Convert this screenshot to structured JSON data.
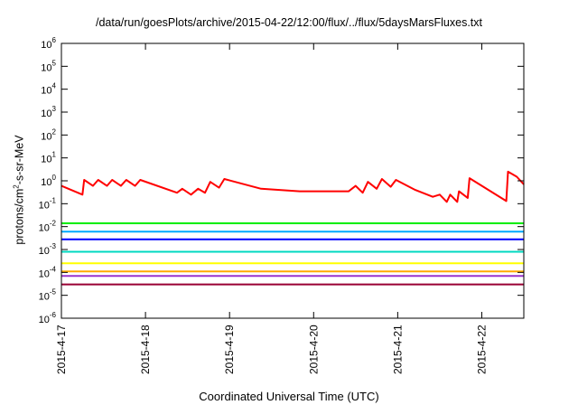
{
  "chart_data": {
    "type": "line",
    "title": "/data/run/goesPlots/archive/2015-04-22/12:00/flux/../flux/5daysMarsFluxes.txt",
    "xlabel": "Coordinated Universal Time (UTC)",
    "ylabel": {
      "base": "protons/cm",
      "exponent": "2",
      "suffix": "-s-sr-MeV"
    },
    "y_scale": "log",
    "ylim": [
      1e-06,
      1000000.0
    ],
    "y_ticks": [
      {
        "value": 1e-06,
        "base": "10",
        "exp": "-6"
      },
      {
        "value": 1e-05,
        "base": "10",
        "exp": "-5"
      },
      {
        "value": 0.0001,
        "base": "10",
        "exp": "-4"
      },
      {
        "value": 0.001,
        "base": "10",
        "exp": "-3"
      },
      {
        "value": 0.01,
        "base": "10",
        "exp": "-2"
      },
      {
        "value": 0.1,
        "base": "10",
        "exp": "-1"
      },
      {
        "value": 1,
        "base": "10",
        "exp": "0"
      },
      {
        "value": 10,
        "base": "10",
        "exp": "1"
      },
      {
        "value": 100,
        "base": "10",
        "exp": "2"
      },
      {
        "value": 1000,
        "base": "10",
        "exp": "3"
      },
      {
        "value": 10000,
        "base": "10",
        "exp": "4"
      },
      {
        "value": 100000,
        "base": "10",
        "exp": "5"
      },
      {
        "value": 1000000,
        "base": "10",
        "exp": "6"
      }
    ],
    "xlim": [
      "2015-04-17 00:00",
      "2015-04-22 12:00"
    ],
    "x_ticks": [
      "2015-4-17",
      "2015-4-18",
      "2015-4-19",
      "2015-4-20",
      "2015-4-21",
      "2015-4-22"
    ],
    "grid": false,
    "legend": "none",
    "series": [
      {
        "color": "#ff0000",
        "points": [
          [
            "2015-04-17 00:00",
            0.6
          ],
          [
            "2015-04-17 06:00",
            0.25
          ],
          [
            "2015-04-17 06:30",
            1.1
          ],
          [
            "2015-04-17 09:00",
            0.6
          ],
          [
            "2015-04-17 10:30",
            1.1
          ],
          [
            "2015-04-17 13:00",
            0.6
          ],
          [
            "2015-04-17 14:30",
            1.1
          ],
          [
            "2015-04-17 17:00",
            0.6
          ],
          [
            "2015-04-17 18:30",
            1.1
          ],
          [
            "2015-04-17 21:00",
            0.6
          ],
          [
            "2015-04-17 22:30",
            1.1
          ],
          [
            "2015-04-18 09:00",
            0.3
          ],
          [
            "2015-04-18 10:30",
            0.45
          ],
          [
            "2015-04-18 13:00",
            0.25
          ],
          [
            "2015-04-18 15:00",
            0.45
          ],
          [
            "2015-04-18 17:00",
            0.3
          ],
          [
            "2015-04-18 18:30",
            0.9
          ],
          [
            "2015-04-18 21:00",
            0.5
          ],
          [
            "2015-04-18 22:30",
            1.2
          ],
          [
            "2015-04-19 09:00",
            0.45
          ],
          [
            "2015-04-19 20:00",
            0.35
          ],
          [
            "2015-04-20 10:00",
            0.35
          ],
          [
            "2015-04-20 12:00",
            0.6
          ],
          [
            "2015-04-20 14:00",
            0.3
          ],
          [
            "2015-04-20 15:30",
            0.9
          ],
          [
            "2015-04-20 18:00",
            0.45
          ],
          [
            "2015-04-20 19:30",
            1.2
          ],
          [
            "2015-04-20 22:00",
            0.55
          ],
          [
            "2015-04-20 23:30",
            1.1
          ],
          [
            "2015-04-21 05:00",
            0.4
          ],
          [
            "2015-04-21 10:00",
            0.2
          ],
          [
            "2015-04-21 12:00",
            0.25
          ],
          [
            "2015-04-21 14:00",
            0.12
          ],
          [
            "2015-04-21 15:00",
            0.25
          ],
          [
            "2015-04-21 17:00",
            0.12
          ],
          [
            "2015-04-21 17:30",
            0.35
          ],
          [
            "2015-04-21 20:00",
            0.18
          ],
          [
            "2015-04-21 20:30",
            1.3
          ],
          [
            "2015-04-22 07:00",
            0.13
          ],
          [
            "2015-04-22 07:30",
            2.5
          ],
          [
            "2015-04-22 10:00",
            1.5
          ],
          [
            "2015-04-22 12:00",
            0.7
          ]
        ]
      },
      {
        "color": "#00ee00",
        "points": [
          [
            "2015-04-17 00:00",
            0.014
          ],
          [
            "2015-04-22 12:00",
            0.014
          ]
        ]
      },
      {
        "color": "#00aaff",
        "points": [
          [
            "2015-04-17 00:00",
            0.006
          ],
          [
            "2015-04-22 12:00",
            0.006
          ]
        ]
      },
      {
        "color": "#0000ff",
        "points": [
          [
            "2015-04-17 00:00",
            0.0028
          ],
          [
            "2015-04-22 12:00",
            0.0028
          ]
        ]
      },
      {
        "color": "#00d8c0",
        "points": [
          [
            "2015-04-17 00:00",
            0.0008
          ],
          [
            "2015-04-22 12:00",
            0.0008
          ]
        ]
      },
      {
        "color": "#ffff00",
        "points": [
          [
            "2015-04-17 00:00",
            0.00025
          ],
          [
            "2015-04-22 12:00",
            0.00025
          ]
        ]
      },
      {
        "color": "#ffaa00",
        "points": [
          [
            "2015-04-17 00:00",
            0.00011
          ],
          [
            "2015-04-22 12:00",
            0.00011
          ]
        ]
      },
      {
        "color": "#9933cc",
        "points": [
          [
            "2015-04-17 00:00",
            7e-05
          ],
          [
            "2015-04-22 12:00",
            7e-05
          ]
        ]
      },
      {
        "color": "#990033",
        "points": [
          [
            "2015-04-17 00:00",
            3e-05
          ],
          [
            "2015-04-22 12:00",
            3e-05
          ]
        ]
      }
    ]
  }
}
